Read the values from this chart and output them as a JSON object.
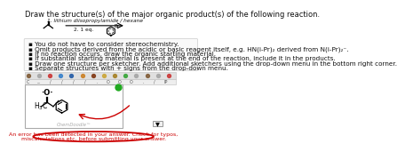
{
  "title_text": "Draw the structure(s) of the major organic product(s) of the following reaction.",
  "reaction_step1": "1. lithium diisopropylamide / hexane",
  "reaction_step2": "2. 1 eq.",
  "bullet_points": [
    "You do not have to consider stereochemistry.",
    "Omit products derived from the acidic or basic reagent itself, e.g. HN(i-Pr)₂ derived from N(i-Pr)₂⁻.",
    "If no reaction occurs, draw the organic starting material.",
    "If substantial starting material is present at the end of the reaction, include it in the products.",
    "Draw one structure per sketcher. Add additional sketchers using the drop-down menu in the bottom right corner.",
    "Separate structures with + signs from the drop-down menu."
  ],
  "error_text": "An error has been detected in your answer. Check for typos,\nmiscalculations etc. before submitting your answer.",
  "chemdoodle_label": "ChemDoodle™",
  "bg_color": "#ffffff",
  "box_bg": "#f9f9f9",
  "error_oval_color": "#cc0000",
  "green_dot_color": "#22aa22",
  "arrow_color": "#cc0000",
  "font_color": "#111111",
  "bullet_font_size": 5.2,
  "title_font_size": 6.0
}
